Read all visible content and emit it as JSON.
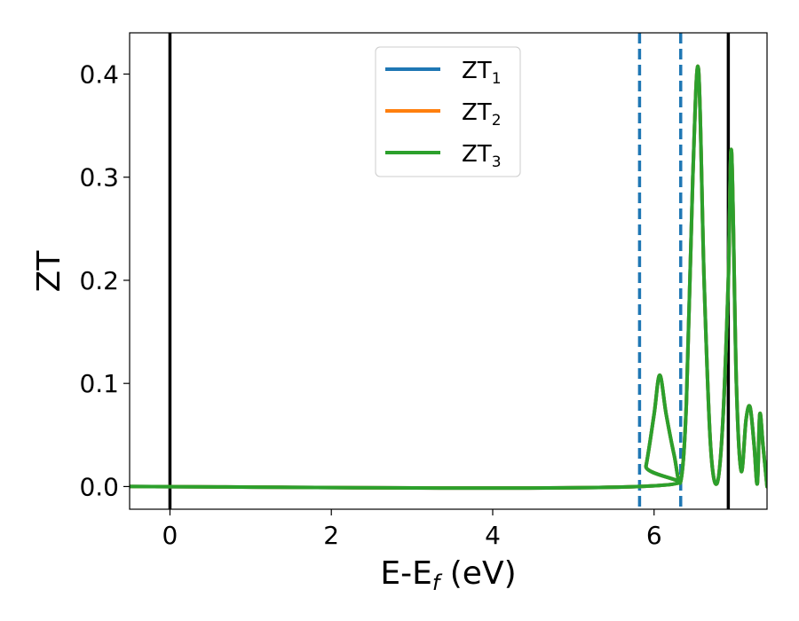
{
  "chart_data": {
    "type": "line",
    "title": "",
    "xlabel": "E-E",
    "xlabel_sub": "f",
    "xlabel_unit": " (eV)",
    "ylabel": "ZT",
    "xlim": [
      -0.5,
      7.4
    ],
    "ylim": [
      -0.022,
      0.44
    ],
    "xticks": [
      0,
      2,
      4,
      6
    ],
    "xtick_labels": [
      "0",
      "2",
      "4",
      "6"
    ],
    "yticks": [
      0.0,
      0.1,
      0.2,
      0.3,
      0.4
    ],
    "ytick_labels": [
      "0.0",
      "0.1",
      "0.2",
      "0.3",
      "0.4"
    ],
    "grid": false,
    "legend_position": "top-center",
    "vlines_solid": [
      0.0,
      6.92
    ],
    "vlines_dashed": [
      5.82,
      6.33
    ],
    "vline_solid_color": "#000000",
    "vline_dashed_color": "#1f77b4",
    "series": [
      {
        "name": "ZT",
        "name_sub": "1",
        "color": "#1f77b4",
        "x": [
          -0.5,
          5.82,
          5.9,
          6.0,
          6.07,
          6.15,
          6.25,
          6.33,
          6.4,
          6.48,
          6.55,
          6.62,
          6.7,
          6.78,
          6.85,
          6.92,
          6.96,
          7.02,
          7.08,
          7.14,
          7.19,
          7.24,
          7.28,
          7.31,
          7.35,
          7.4
        ],
        "y": [
          0.0,
          0.0,
          0.02,
          0.07,
          0.108,
          0.07,
          0.03,
          0.005,
          0.08,
          0.3,
          0.405,
          0.2,
          0.04,
          0.003,
          0.06,
          0.2,
          0.325,
          0.1,
          0.015,
          0.065,
          0.077,
          0.04,
          0.003,
          0.07,
          0.04,
          0.0
        ]
      },
      {
        "name": "ZT",
        "name_sub": "2",
        "color": "#ff7f0e",
        "x": [
          -0.5,
          5.82,
          5.9,
          6.0,
          6.07,
          6.15,
          6.25,
          6.33,
          6.4,
          6.48,
          6.55,
          6.62,
          6.7,
          6.78,
          6.85,
          6.92,
          6.96,
          7.02,
          7.08,
          7.14,
          7.19,
          7.24,
          7.28,
          7.31,
          7.35,
          7.4
        ],
        "y": [
          0.0,
          0.0,
          0.02,
          0.07,
          0.108,
          0.07,
          0.03,
          0.005,
          0.08,
          0.3,
          0.405,
          0.2,
          0.04,
          0.003,
          0.06,
          0.2,
          0.325,
          0.1,
          0.015,
          0.065,
          0.077,
          0.04,
          0.003,
          0.07,
          0.04,
          0.0
        ]
      },
      {
        "name": "ZT",
        "name_sub": "3",
        "color": "#2ca02c",
        "x": [
          -0.5,
          5.82,
          5.9,
          6.0,
          6.07,
          6.15,
          6.25,
          6.33,
          6.4,
          6.48,
          6.55,
          6.62,
          6.7,
          6.78,
          6.85,
          6.92,
          6.96,
          7.02,
          7.08,
          7.14,
          7.19,
          7.24,
          7.28,
          7.31,
          7.35,
          7.4
        ],
        "y": [
          0.0,
          0.0,
          0.02,
          0.07,
          0.108,
          0.07,
          0.03,
          0.005,
          0.08,
          0.3,
          0.405,
          0.2,
          0.04,
          0.003,
          0.06,
          0.2,
          0.325,
          0.1,
          0.015,
          0.065,
          0.077,
          0.04,
          0.003,
          0.07,
          0.04,
          0.0
        ]
      }
    ]
  }
}
